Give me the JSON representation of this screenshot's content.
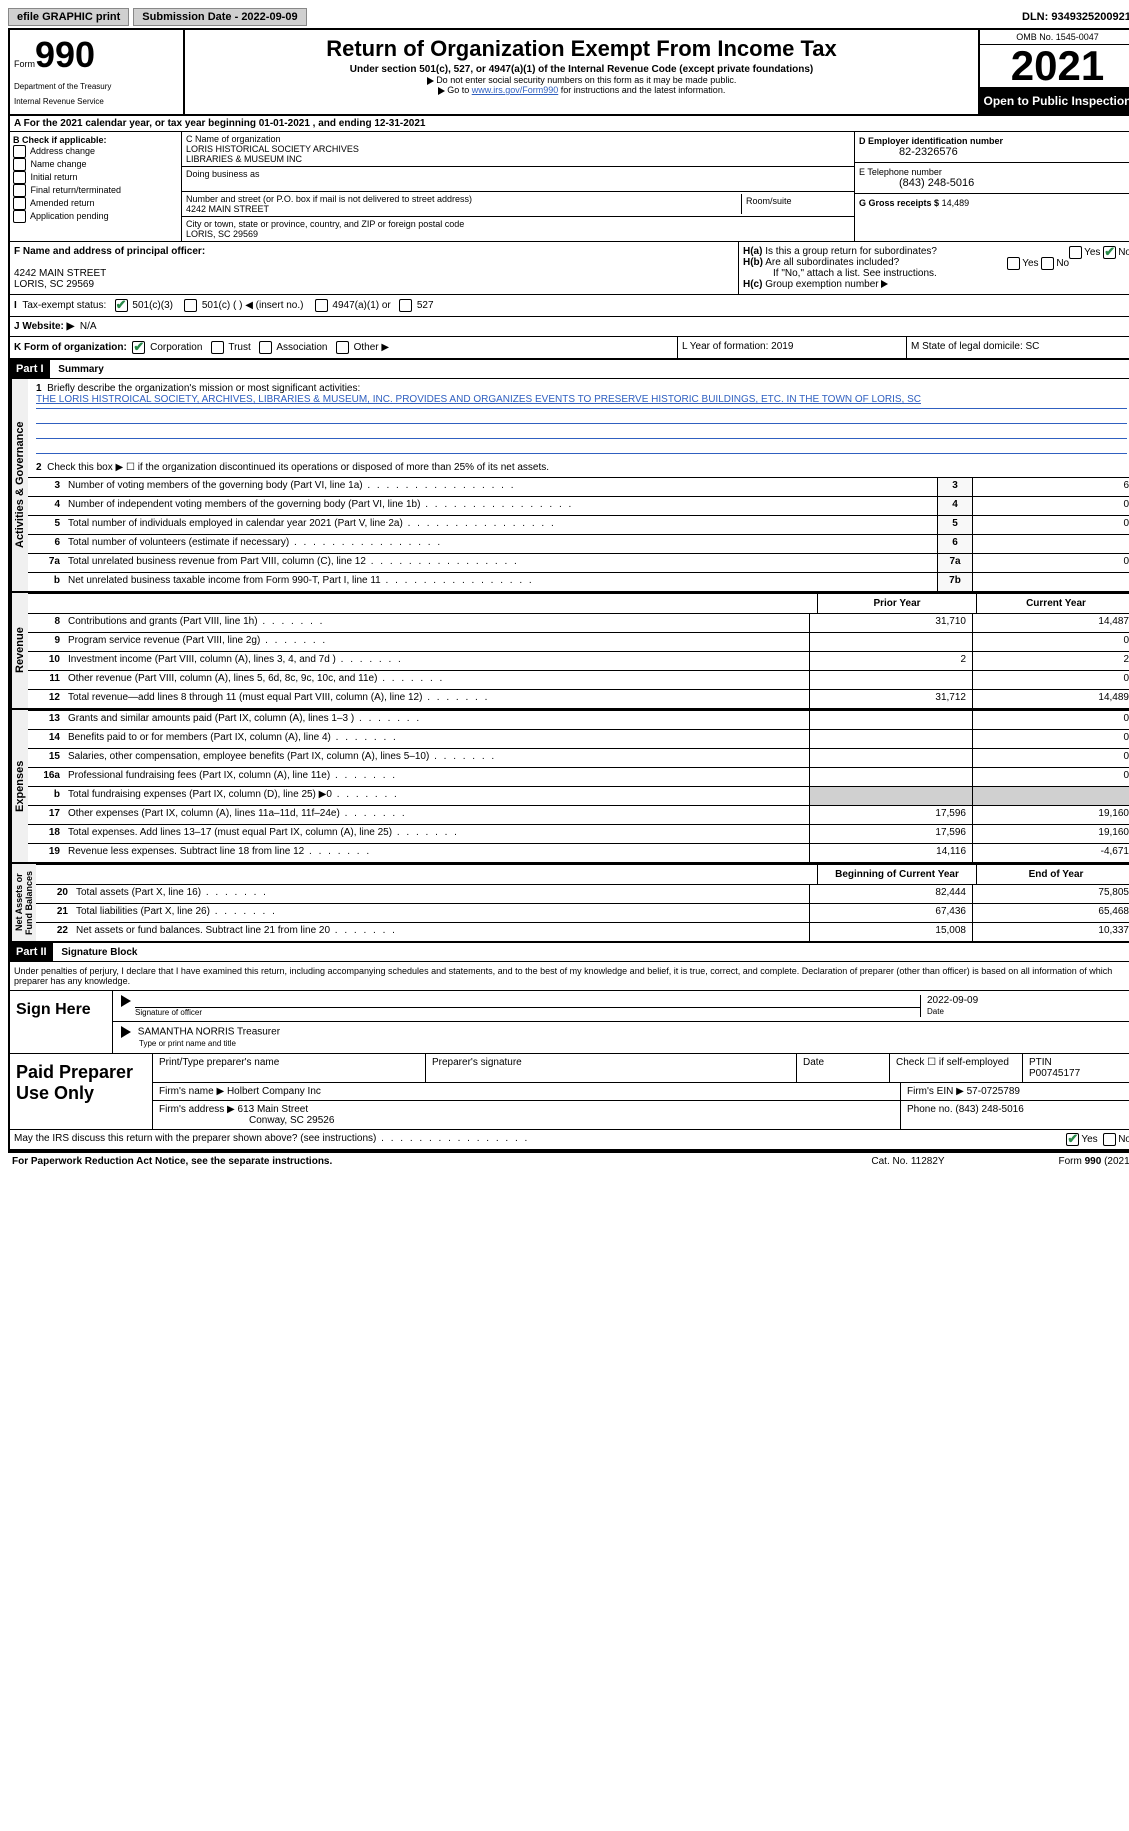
{
  "top": {
    "efile": "efile GRAPHIC print",
    "submission_label": "Submission Date - 2022-09-09",
    "dln": "DLN: 93493252009212"
  },
  "header": {
    "form_prefix": "Form",
    "form_number": "990",
    "dept": "Department of the Treasury",
    "irs": "Internal Revenue Service",
    "title": "Return of Organization Exempt From Income Tax",
    "sub": "Under section 501(c), 527, or 4947(a)(1) of the Internal Revenue Code (except private foundations)",
    "note1": "Do not enter social security numbers on this form as it may be made public.",
    "note2_pre": "Go to ",
    "note2_link": "www.irs.gov/Form990",
    "note2_post": " for instructions and the latest information.",
    "omb": "OMB No. 1545-0047",
    "year": "2021",
    "open": "Open to Public Inspection"
  },
  "period": "For the 2021 calendar year, or tax year beginning 01-01-2021   , and ending 12-31-2021",
  "sectionB": {
    "label": "B Check if applicable:",
    "opts": [
      "Address change",
      "Name change",
      "Initial return",
      "Final return/terminated",
      "Amended return",
      "Application pending"
    ]
  },
  "sectionC": {
    "name_label": "C Name of organization",
    "name1": "LORIS HISTORICAL SOCIETY ARCHIVES",
    "name2": "LIBRARIES & MUSEUM INC",
    "dba": "Doing business as",
    "addr_label": "Number and street (or P.O. box if mail is not delivered to street address)",
    "room_label": "Room/suite",
    "addr": "4242 MAIN STREET",
    "city_label": "City or town, state or province, country, and ZIP or foreign postal code",
    "city": "LORIS, SC  29569"
  },
  "sectionD": {
    "label": "D Employer identification number",
    "ein": "82-2326576",
    "tel_label": "E Telephone number",
    "tel": "(843) 248-5016",
    "gross_label": "G Gross receipts $",
    "gross": "14,489"
  },
  "sectionF": {
    "label": "F Name and address of principal officer:",
    "addr1": "4242 MAIN STREET",
    "addr2": "LORIS, SC  29569"
  },
  "sectionH": {
    "ha": "Is this a group return for subordinates?",
    "hb": "Are all subordinates included?",
    "hnote": "If \"No,\" attach a list. See instructions.",
    "hc": "Group exemption number"
  },
  "sectionI": {
    "label": "Tax-exempt status:",
    "opts": [
      "501(c)(3)",
      "501(c) (  ) ◀ (insert no.)",
      "4947(a)(1) or",
      "527"
    ]
  },
  "sectionJ": {
    "label": "J  Website: ▶",
    "val": "N/A"
  },
  "sectionK": {
    "k": "K Form of organization:",
    "opts": [
      "Corporation",
      "Trust",
      "Association",
      "Other ▶"
    ],
    "l": "L Year of formation: 2019",
    "m": "M State of legal domicile: SC"
  },
  "part1": {
    "header": "Part I",
    "title": "Summary",
    "q1": "Briefly describe the organization's mission or most significant activities:",
    "mission": "THE LORIS HISTROICAL SOCIETY, ARCHIVES, LIBRARIES & MUSEUM, INC. PROVIDES AND ORGANIZES EVENTS TO PRESERVE HISTORIC BUILDINGS, ETC. IN THE TOWN OF LORIS, SC",
    "q2": "Check this box ▶ ☐ if the organization discontinued its operations or disposed of more than 25% of its net assets.",
    "lines_gov": [
      {
        "n": "3",
        "d": "Number of voting members of the governing body (Part VI, line 1a)",
        "box": "3",
        "v": "6"
      },
      {
        "n": "4",
        "d": "Number of independent voting members of the governing body (Part VI, line 1b)",
        "box": "4",
        "v": "0"
      },
      {
        "n": "5",
        "d": "Total number of individuals employed in calendar year 2021 (Part V, line 2a)",
        "box": "5",
        "v": "0"
      },
      {
        "n": "6",
        "d": "Total number of volunteers (estimate if necessary)",
        "box": "6",
        "v": ""
      },
      {
        "n": "7a",
        "d": "Total unrelated business revenue from Part VIII, column (C), line 12",
        "box": "7a",
        "v": "0"
      },
      {
        "n": "b",
        "d": "Net unrelated business taxable income from Form 990-T, Part I, line 11",
        "box": "7b",
        "v": ""
      }
    ],
    "col_prior": "Prior Year",
    "col_current": "Current Year",
    "revenue": [
      {
        "n": "8",
        "d": "Contributions and grants (Part VIII, line 1h)",
        "p": "31,710",
        "c": "14,487"
      },
      {
        "n": "9",
        "d": "Program service revenue (Part VIII, line 2g)",
        "p": "",
        "c": "0"
      },
      {
        "n": "10",
        "d": "Investment income (Part VIII, column (A), lines 3, 4, and 7d )",
        "p": "2",
        "c": "2"
      },
      {
        "n": "11",
        "d": "Other revenue (Part VIII, column (A), lines 5, 6d, 8c, 9c, 10c, and 11e)",
        "p": "",
        "c": "0"
      },
      {
        "n": "12",
        "d": "Total revenue—add lines 8 through 11 (must equal Part VIII, column (A), line 12)",
        "p": "31,712",
        "c": "14,489"
      }
    ],
    "expenses": [
      {
        "n": "13",
        "d": "Grants and similar amounts paid (Part IX, column (A), lines 1–3 )",
        "p": "",
        "c": "0"
      },
      {
        "n": "14",
        "d": "Benefits paid to or for members (Part IX, column (A), line 4)",
        "p": "",
        "c": "0"
      },
      {
        "n": "15",
        "d": "Salaries, other compensation, employee benefits (Part IX, column (A), lines 5–10)",
        "p": "",
        "c": "0"
      },
      {
        "n": "16a",
        "d": "Professional fundraising fees (Part IX, column (A), line 11e)",
        "p": "",
        "c": "0"
      },
      {
        "n": "b",
        "d": "Total fundraising expenses (Part IX, column (D), line 25) ▶0",
        "p": "gray",
        "c": "gray"
      },
      {
        "n": "17",
        "d": "Other expenses (Part IX, column (A), lines 11a–11d, 11f–24e)",
        "p": "17,596",
        "c": "19,160"
      },
      {
        "n": "18",
        "d": "Total expenses. Add lines 13–17 (must equal Part IX, column (A), line 25)",
        "p": "17,596",
        "c": "19,160"
      },
      {
        "n": "19",
        "d": "Revenue less expenses. Subtract line 18 from line 12",
        "p": "14,116",
        "c": "-4,671"
      }
    ],
    "col_begin": "Beginning of Current Year",
    "col_end": "End of Year",
    "netassets": [
      {
        "n": "20",
        "d": "Total assets (Part X, line 16)",
        "p": "82,444",
        "c": "75,805"
      },
      {
        "n": "21",
        "d": "Total liabilities (Part X, line 26)",
        "p": "67,436",
        "c": "65,468"
      },
      {
        "n": "22",
        "d": "Net assets or fund balances. Subtract line 21 from line 20",
        "p": "15,008",
        "c": "10,337"
      }
    ]
  },
  "part2": {
    "header": "Part II",
    "title": "Signature Block",
    "decl": "Under penalties of perjury, I declare that I have examined this return, including accompanying schedules and statements, and to the best of my knowledge and belief, it is true, correct, and complete. Declaration of preparer (other than officer) is based on all information of which preparer has any knowledge.",
    "sign_here": "Sign Here",
    "sig_officer": "Signature of officer",
    "sig_date": "2022-09-09",
    "date_label": "Date",
    "officer_name": "SAMANTHA NORRIS  Treasurer",
    "type_label": "Type or print name and title",
    "paid": "Paid Preparer Use Only",
    "prep_name_label": "Print/Type preparer's name",
    "prep_sig_label": "Preparer's signature",
    "check_self": "Check ☐ if self-employed",
    "ptin_label": "PTIN",
    "ptin": "P00745177",
    "firm_name_label": "Firm's name   ▶",
    "firm_name": "Holbert Company Inc",
    "firm_ein_label": "Firm's EIN ▶",
    "firm_ein": "57-0725789",
    "firm_addr_label": "Firm's address ▶",
    "firm_addr1": "613 Main Street",
    "firm_addr2": "Conway, SC  29526",
    "firm_phone_label": "Phone no.",
    "firm_phone": "(843) 248-5016",
    "discuss": "May the IRS discuss this return with the preparer shown above? (see instructions)"
  },
  "footer": {
    "pra": "For Paperwork Reduction Act Notice, see the separate instructions.",
    "cat": "Cat. No. 11282Y",
    "form": "Form 990 (2021)"
  }
}
